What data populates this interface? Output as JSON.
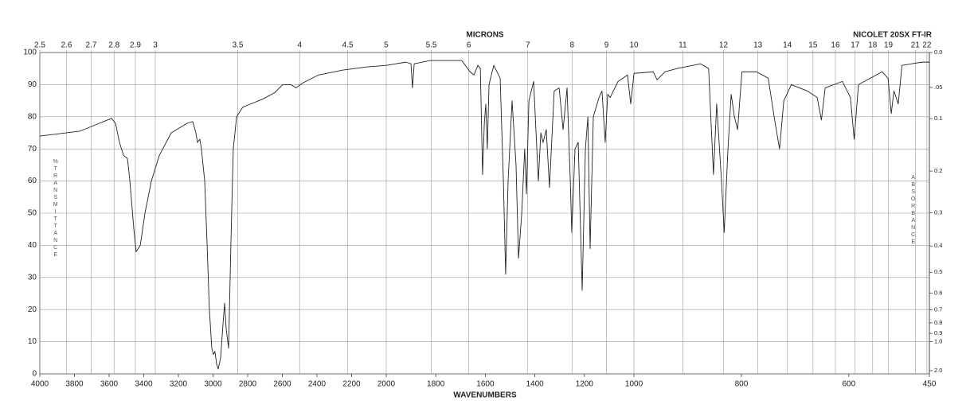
{
  "chart_data": {
    "type": "line",
    "x2label": "MICRONS",
    "annotation": "NICOLET 20SX FT-IR",
    "xlabel": "WAVENUMBERS",
    "ylabel": "%TRANSMITTANCE",
    "y2label": "ABSORBANCE",
    "xlim": [
      4000,
      450
    ],
    "xscale_breaks": [
      2000,
      1000
    ],
    "xticks": [
      4000,
      3800,
      3600,
      3400,
      3200,
      3000,
      2800,
      2600,
      2400,
      2200,
      2000,
      1800,
      1600,
      1400,
      1200,
      1000,
      800,
      600,
      450
    ],
    "x2ticks": [
      2.5,
      2.6,
      2.7,
      2.8,
      2.9,
      3,
      3.5,
      4,
      4.5,
      5,
      5.5,
      6,
      7,
      8,
      9,
      10,
      11,
      12,
      13,
      14,
      15,
      16,
      17,
      18,
      19,
      21,
      22
    ],
    "ylim": [
      0,
      100
    ],
    "yticks": [
      0,
      10,
      20,
      30,
      40,
      50,
      60,
      70,
      80,
      90,
      100
    ],
    "y2ticks": [
      {
        "value": 0,
        "label": "0.0"
      },
      {
        "value": 0.05,
        "label": ".05"
      },
      0.1,
      0.2,
      0.3,
      0.4,
      0.5,
      0.6,
      0.7,
      0.8,
      0.9,
      {
        "value": 1,
        "label": "1.0"
      },
      {
        "value": 2,
        "label": "2.0"
      }
    ],
    "grid": true,
    "x": [
      4000,
      3770,
      3609,
      3586,
      3563,
      3540,
      3517,
      3494,
      3480,
      3457,
      3444,
      3420,
      3393,
      3356,
      3310,
      3241,
      3149,
      3117,
      3099,
      3090,
      3076,
      3067,
      3048,
      3034,
      3021,
      3007,
      2998,
      2989,
      2979,
      2970,
      2956,
      2943,
      2933,
      2924,
      2910,
      2897,
      2883,
      2864,
      2828,
      2782,
      2713,
      2644,
      2598,
      2552,
      2520,
      2483,
      2391,
      2253,
      2115,
      2000,
      1920,
      1900,
      1894,
      1887,
      1823,
      1695,
      1662,
      1646,
      1630,
      1620,
      1611,
      1604,
      1598,
      1592,
      1585,
      1566,
      1540,
      1527,
      1518,
      1508,
      1492,
      1476,
      1466,
      1453,
      1441,
      1434,
      1424,
      1405,
      1386,
      1376,
      1367,
      1354,
      1341,
      1322,
      1302,
      1286,
      1270,
      1257,
      1251,
      1238,
      1225,
      1209,
      1196,
      1186,
      1177,
      1164,
      1141,
      1129,
      1116,
      1106,
      1096,
      1077,
      1064,
      1045,
      1026,
      1013,
      1000,
      964,
      957,
      942,
      920,
      876,
      861,
      852,
      846,
      837,
      832,
      825,
      819,
      813,
      807,
      799,
      772,
      750,
      739,
      729,
      721,
      707,
      677,
      659,
      651,
      644,
      612,
      597,
      590,
      582,
      538,
      527,
      521,
      516,
      508,
      501,
      464,
      450
    ],
    "series": [
      {
        "color": "#222222",
        "values": [
          74,
          75.5,
          79,
          79.5,
          78,
          72,
          68,
          67,
          60,
          45,
          38,
          40,
          50,
          60,
          68,
          75,
          78,
          78.5,
          75,
          72,
          73,
          70,
          60,
          40,
          20,
          8,
          6,
          7,
          3,
          1.5,
          5,
          15,
          22,
          14,
          8,
          40,
          70,
          80,
          83,
          84,
          85.5,
          87.5,
          90,
          90,
          89,
          90.5,
          93,
          94.5,
          95.5,
          96,
          97,
          96.5,
          89,
          96.5,
          97.5,
          97.5,
          94,
          93,
          96,
          95,
          62,
          78,
          84,
          70,
          90,
          96,
          92,
          60,
          31,
          60,
          85,
          65,
          36,
          50,
          70,
          56,
          85,
          91,
          60,
          75,
          72,
          76,
          58,
          88,
          89,
          76,
          89,
          60,
          44,
          70,
          72,
          26,
          70,
          80,
          39,
          80,
          86,
          88,
          72,
          87,
          86,
          89,
          91,
          92,
          93,
          84,
          93.5,
          94,
          91.5,
          94,
          95,
          96.5,
          95,
          62,
          84,
          60,
          44,
          70,
          87,
          80,
          76,
          94,
          94,
          92,
          80,
          70,
          85,
          90,
          88,
          86,
          79,
          89,
          91,
          86,
          73,
          90,
          94,
          92,
          81,
          88,
          84,
          96,
          97,
          97
        ]
      }
    ]
  }
}
